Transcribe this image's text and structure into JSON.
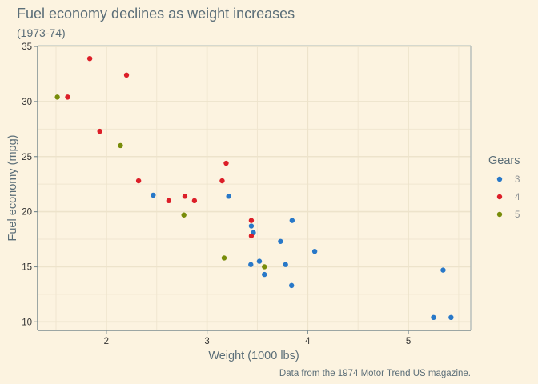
{
  "chart_data": {
    "type": "scatter",
    "title": "Fuel economy declines as weight increases",
    "subtitle": "(1973-74)",
    "caption": "Data from the 1974 Motor Trend US magazine.",
    "xlabel": "Weight (1000 lbs)",
    "ylabel": "Fuel economy (mpg)",
    "xlim": [
      1.317,
      5.62
    ],
    "ylim": [
      9.225,
      35.075
    ],
    "xticks": [
      2,
      3,
      4,
      5
    ],
    "yticks": [
      10,
      15,
      20,
      25,
      30,
      35
    ],
    "grid": true,
    "legend": {
      "title": "Gears",
      "placement": "right",
      "entries": [
        {
          "label": "3",
          "color": "#2878c8"
        },
        {
          "label": "4",
          "color": "#dc1e28"
        },
        {
          "label": "5",
          "color": "#788c0a"
        }
      ]
    },
    "series": [
      {
        "name": "3",
        "color": "#2878c8",
        "points": [
          [
            3.215,
            21.4
          ],
          [
            3.44,
            18.7
          ],
          [
            3.46,
            18.1
          ],
          [
            3.57,
            14.3
          ],
          [
            4.07,
            16.4
          ],
          [
            3.73,
            17.3
          ],
          [
            3.78,
            15.2
          ],
          [
            5.25,
            10.4
          ],
          [
            5.424,
            10.4
          ],
          [
            5.345,
            14.7
          ],
          [
            2.465,
            21.5
          ],
          [
            3.52,
            15.5
          ],
          [
            3.435,
            15.2
          ],
          [
            3.84,
            13.3
          ],
          [
            3.845,
            19.2
          ]
        ]
      },
      {
        "name": "4",
        "color": "#dc1e28",
        "points": [
          [
            2.62,
            21.0
          ],
          [
            2.875,
            21.0
          ],
          [
            2.32,
            22.8
          ],
          [
            3.19,
            24.4
          ],
          [
            3.15,
            22.8
          ],
          [
            3.44,
            19.2
          ],
          [
            3.44,
            17.8
          ],
          [
            2.2,
            32.4
          ],
          [
            1.615,
            30.4
          ],
          [
            1.835,
            33.9
          ],
          [
            1.935,
            27.3
          ],
          [
            2.78,
            21.4
          ]
        ]
      },
      {
        "name": "5",
        "color": "#788c0a",
        "points": [
          [
            2.14,
            26.0
          ],
          [
            1.513,
            30.4
          ],
          [
            3.17,
            15.8
          ],
          [
            2.77,
            19.7
          ],
          [
            3.57,
            15.0
          ]
        ]
      }
    ]
  }
}
